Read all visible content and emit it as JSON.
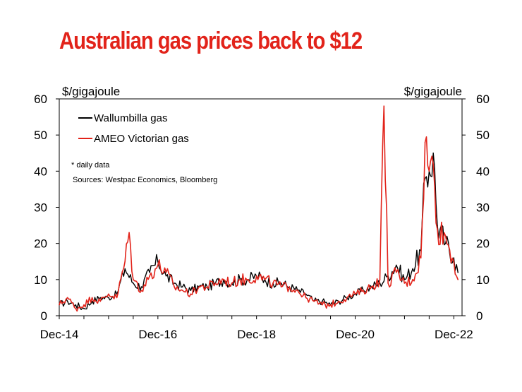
{
  "header": {
    "title": "Australian gas prices back to $12"
  },
  "chart_data": {
    "type": "line",
    "title": "Australian gas prices back to $12",
    "ylabel_left": "$/gigajoule",
    "ylabel_right": "$/gigajoule",
    "ylim": [
      0,
      60
    ],
    "y_ticks": [
      "0",
      "10",
      "20",
      "30",
      "40",
      "50",
      "60"
    ],
    "x_ticks": [
      "Dec-14",
      "Dec-16",
      "Dec-18",
      "Dec-20",
      "Dec-22"
    ],
    "x_range": [
      "2014-12",
      "2023-02"
    ],
    "annotations": [
      "* daily data",
      "Sources: Westpac Economics, Bloomberg"
    ],
    "legend_position": "top-left",
    "series": [
      {
        "name": "Wallumbilla gas",
        "color": "#000000",
        "x": [
          "2014-12",
          "2015-02",
          "2015-04",
          "2015-06",
          "2015-08",
          "2015-10",
          "2015-12",
          "2016-02",
          "2016-04",
          "2016-06",
          "2016-08",
          "2016-10",
          "2016-12",
          "2017-02",
          "2017-04",
          "2017-06",
          "2017-08",
          "2017-10",
          "2017-12",
          "2018-02",
          "2018-04",
          "2018-06",
          "2018-08",
          "2018-10",
          "2018-12",
          "2019-02",
          "2019-04",
          "2019-06",
          "2019-08",
          "2019-10",
          "2019-12",
          "2020-02",
          "2020-04",
          "2020-06",
          "2020-08",
          "2020-10",
          "2020-12",
          "2021-02",
          "2021-04",
          "2021-06",
          "2021-08",
          "2021-10",
          "2021-12",
          "2022-02",
          "2022-04",
          "2022-05",
          "2022-06",
          "2022-07",
          "2022-08",
          "2022-10",
          "2022-12",
          "2023-01"
        ],
        "values": [
          3,
          4,
          3,
          2,
          4,
          5,
          5,
          6,
          13,
          9,
          8,
          12,
          15,
          11,
          9,
          8,
          7,
          8,
          8,
          9,
          10,
          9,
          10,
          10,
          11,
          10,
          9,
          9,
          8,
          7,
          6,
          4,
          4,
          3,
          4,
          5,
          6,
          7,
          8,
          9,
          11,
          14,
          10,
          13,
          18,
          38,
          40,
          45,
          25,
          20,
          16,
          12
        ]
      },
      {
        "name": "AMEO Victorian gas",
        "color": "#e2231a",
        "x": [
          "2014-12",
          "2015-02",
          "2015-04",
          "2015-06",
          "2015-08",
          "2015-10",
          "2015-12",
          "2016-02",
          "2016-04",
          "2016-05",
          "2016-06",
          "2016-08",
          "2016-10",
          "2016-12",
          "2017-02",
          "2017-04",
          "2017-06",
          "2017-08",
          "2017-10",
          "2017-12",
          "2018-02",
          "2018-04",
          "2018-06",
          "2018-08",
          "2018-10",
          "2018-12",
          "2019-02",
          "2019-04",
          "2019-06",
          "2019-08",
          "2019-10",
          "2019-12",
          "2020-02",
          "2020-04",
          "2020-06",
          "2020-08",
          "2020-10",
          "2020-12",
          "2021-02",
          "2021-04",
          "2021-06",
          "2021-07",
          "2021-08",
          "2021-10",
          "2021-12",
          "2022-02",
          "2022-04",
          "2022-05",
          "2022-06",
          "2022-07",
          "2022-08",
          "2022-10",
          "2022-12",
          "2023-01"
        ],
        "values": [
          3,
          5,
          2,
          3,
          5,
          4,
          6,
          5,
          15,
          23,
          10,
          7,
          11,
          14,
          12,
          8,
          7,
          6,
          8,
          8,
          9,
          10,
          9,
          10,
          10,
          11,
          10,
          9,
          8,
          8,
          7,
          5,
          4,
          3,
          3,
          4,
          5,
          6,
          7,
          8,
          10,
          58,
          9,
          12,
          9,
          10,
          16,
          48,
          40,
          42,
          24,
          22,
          15,
          10
        ]
      }
    ]
  }
}
